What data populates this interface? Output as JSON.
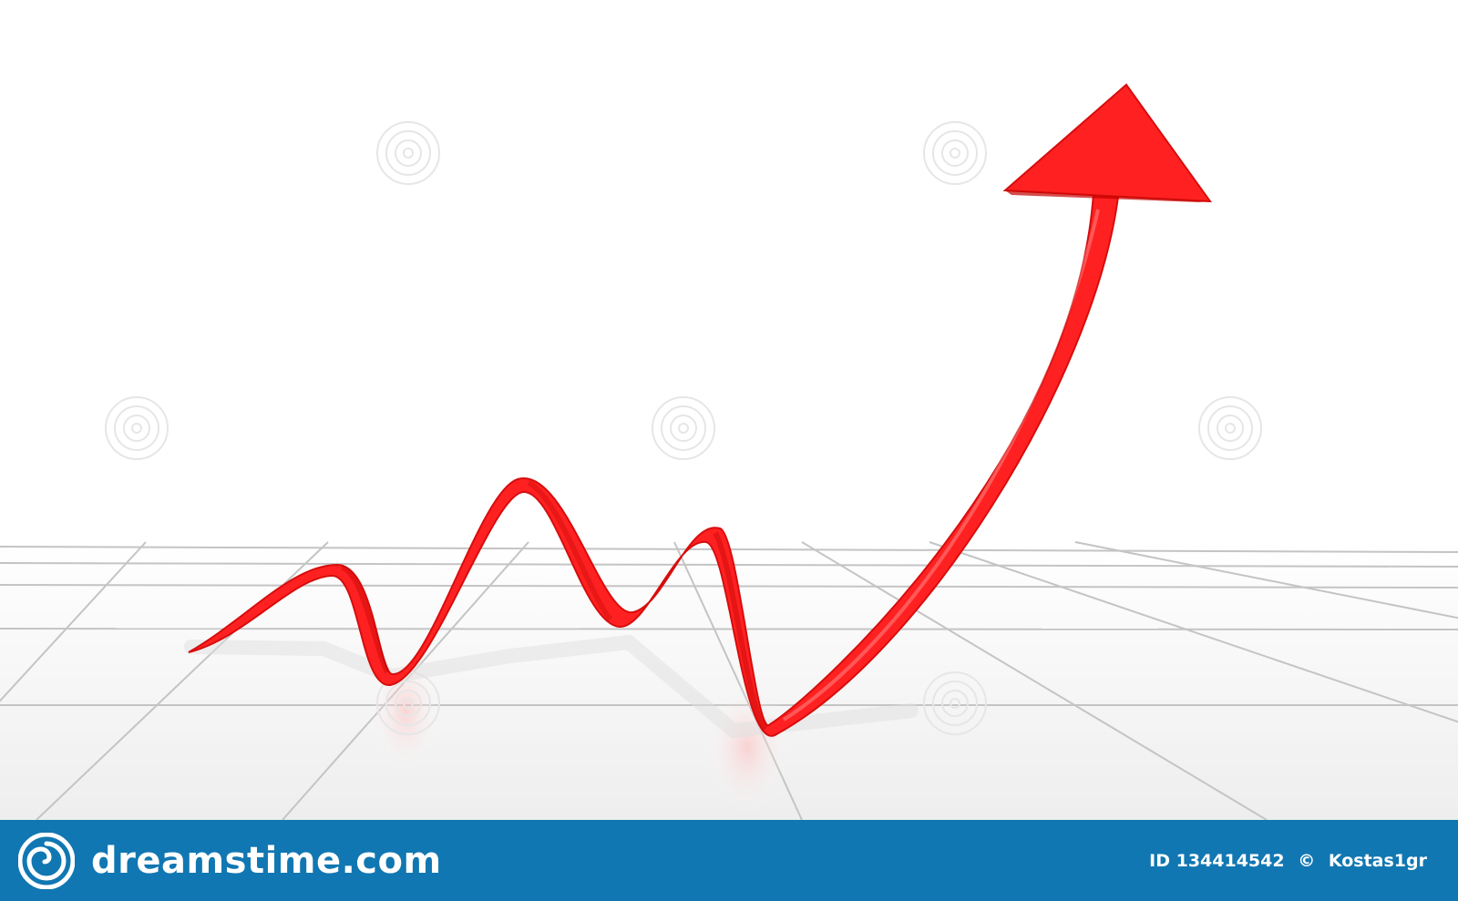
{
  "colors": {
    "arrow": "#ff2020",
    "floor": "#f6f6f6",
    "grid": "#bdbdbd",
    "footer": "#1177b2",
    "watermark": "#e4e4e4"
  },
  "footer": {
    "brand_logo_icon": "spiral-logo-icon",
    "brand_name": "dreamstime.com",
    "image_id": "ID 134414542",
    "copyright_symbol": "©",
    "author": "Kostas1gr"
  }
}
